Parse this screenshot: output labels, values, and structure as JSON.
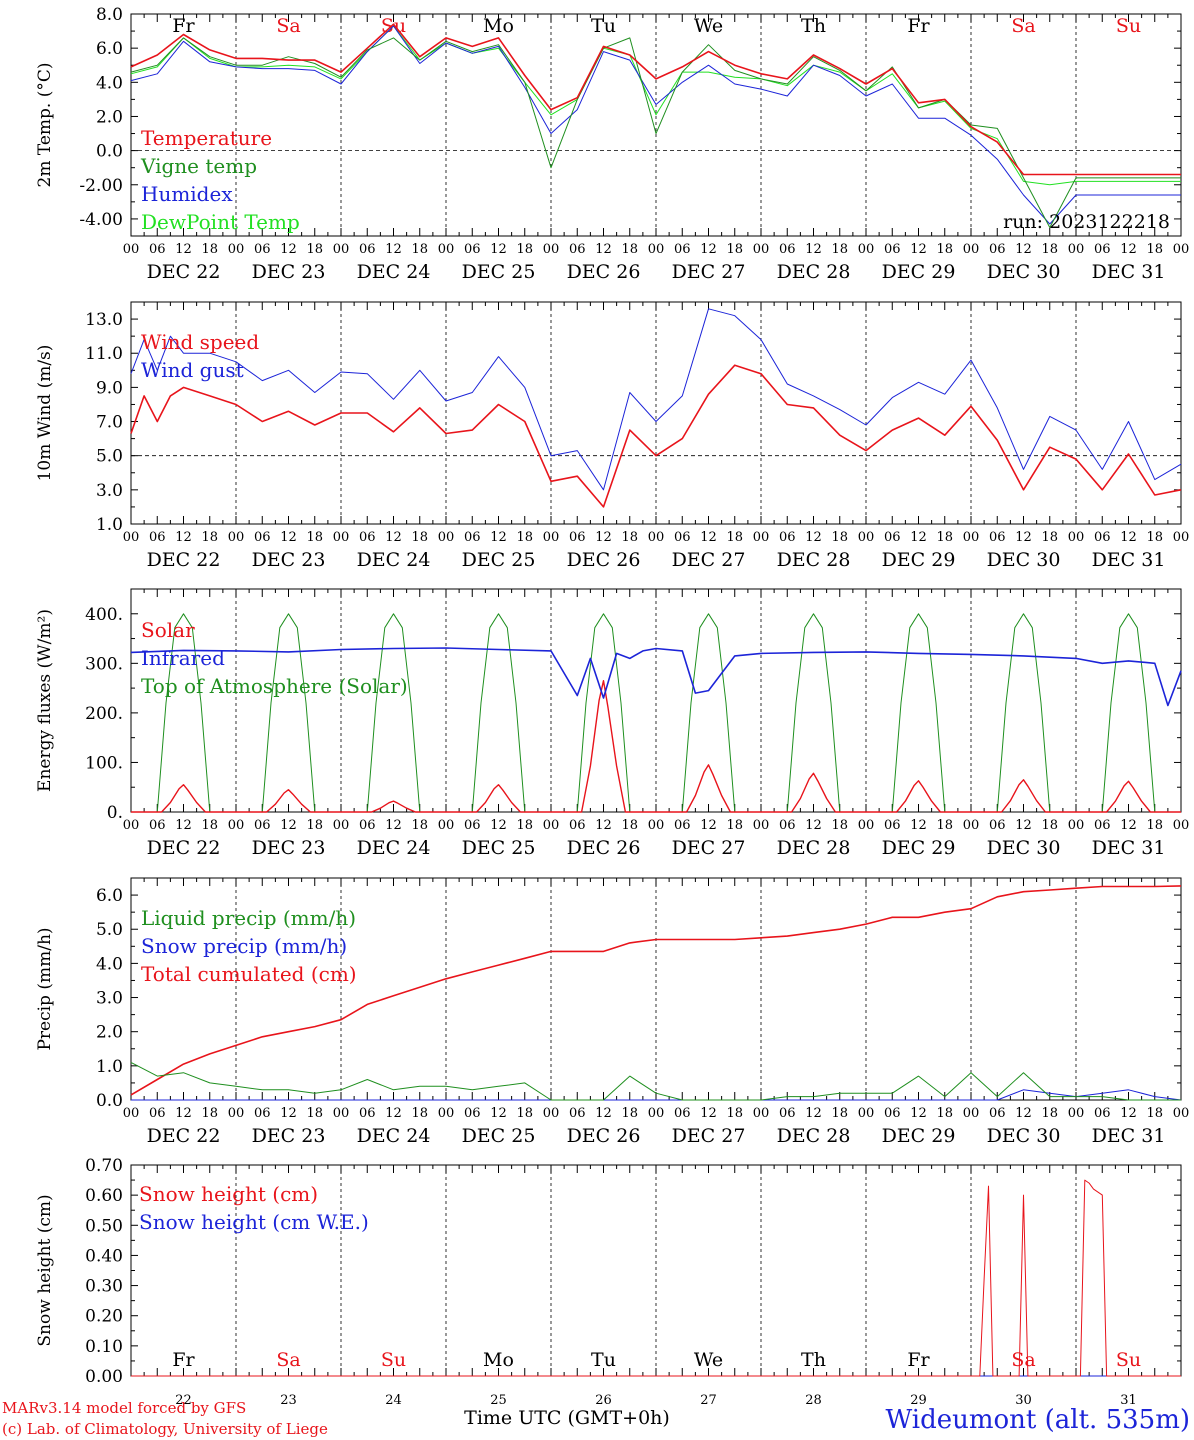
{
  "colors": {
    "red": "#e8141b",
    "green": "#1f8f1f",
    "blue": "#1c24d8",
    "lightgreen": "#22e022",
    "black": "#000000"
  },
  "time_axis": {
    "date_labels": [
      "DEC 22",
      "DEC 23",
      "DEC 24",
      "DEC 25",
      "DEC 26",
      "DEC 27",
      "DEC 28",
      "DEC 29",
      "DEC 30",
      "DEC 31"
    ],
    "hour_labels": [
      "00",
      "06",
      "12",
      "18"
    ],
    "day_names": [
      "Fr",
      "Sa",
      "Su",
      "Mo",
      "Tu",
      "We",
      "Th",
      "Fr",
      "Sa",
      "Su"
    ],
    "day_numbers": [
      "22",
      "23",
      "24",
      "25",
      "26",
      "27",
      "28",
      "29",
      "30",
      "31"
    ],
    "weekend_day_index": [
      1,
      2,
      8,
      9
    ],
    "xlabel": "Time UTC (GMT+0h)"
  },
  "footer": {
    "model_line": "MARv3.14 model forced by GFS",
    "credit_line": "(c) Lab. of Climatology, University of Liege",
    "station": "Wideumont (alt. 535m)"
  },
  "chart_data": [
    {
      "id": "temp",
      "type": "line",
      "ylabel": "2m Temp. (°C)",
      "ylim": [
        -5,
        8
      ],
      "yticks": [
        8.0,
        6.0,
        4.0,
        2.0,
        0.0,
        -2.0,
        -4.0
      ],
      "ref_line": 0,
      "show_day_names": true,
      "annotation": "run: 2023122218",
      "x": [
        0,
        6,
        12,
        18,
        24,
        30,
        36,
        42,
        48,
        54,
        60,
        66,
        72,
        78,
        84,
        90,
        96,
        102,
        108,
        114,
        120,
        126,
        132,
        138,
        144,
        150,
        156,
        162,
        168,
        174,
        180,
        186,
        192,
        198,
        204,
        210,
        216,
        222,
        228,
        234,
        240
      ],
      "series": [
        {
          "name": "Temperature",
          "color": "red",
          "values": [
            4.9,
            5.6,
            6.8,
            5.9,
            5.4,
            5.4,
            5.3,
            5.3,
            4.6,
            6.0,
            7.4,
            5.5,
            6.6,
            6.1,
            6.6,
            4.4,
            2.4,
            3.1,
            6.1,
            5.6,
            4.2,
            4.9,
            5.8,
            5.0,
            4.5,
            4.2,
            5.6,
            4.8,
            3.9,
            4.8,
            2.8,
            3.0,
            1.4,
            0.5,
            -1.4,
            -1.4,
            -1.4,
            -1.4,
            -1.4,
            -1.4,
            -1.4
          ]
        },
        {
          "name": "Vigne temp",
          "color": "green",
          "values": [
            4.6,
            5.0,
            6.6,
            5.5,
            5.0,
            5.0,
            5.5,
            5.1,
            4.3,
            5.9,
            6.6,
            5.3,
            6.4,
            5.8,
            6.2,
            4.0,
            -1.0,
            3.0,
            6.0,
            6.6,
            1.0,
            4.6,
            6.2,
            4.7,
            4.2,
            3.9,
            5.5,
            4.7,
            3.5,
            4.9,
            2.5,
            3.0,
            1.5,
            1.3,
            -1.6,
            -4.5,
            -1.6,
            -1.6,
            -1.6,
            -1.6,
            -1.6
          ]
        },
        {
          "name": "Humidex",
          "color": "blue",
          "values": [
            4.1,
            4.5,
            6.4,
            5.2,
            4.9,
            4.8,
            4.8,
            4.7,
            3.9,
            5.8,
            7.3,
            5.1,
            6.3,
            5.7,
            6.1,
            3.7,
            1.0,
            2.4,
            5.8,
            5.3,
            2.7,
            4.0,
            5.0,
            3.9,
            3.6,
            3.2,
            5.0,
            4.4,
            3.2,
            3.9,
            1.9,
            1.9,
            0.9,
            -0.5,
            -2.6,
            -4.3,
            -2.6,
            -2.6,
            -2.6,
            -2.6,
            -2.6
          ]
        },
        {
          "name": "DewPoint Temp",
          "color": "lightgreen",
          "values": [
            4.5,
            4.9,
            6.6,
            5.4,
            4.9,
            4.9,
            5.0,
            4.9,
            4.2,
            5.8,
            7.3,
            5.3,
            6.3,
            5.7,
            6.0,
            4.0,
            2.1,
            3.0,
            6.0,
            5.6,
            2.1,
            4.6,
            4.6,
            4.3,
            4.2,
            3.8,
            5.0,
            4.6,
            3.5,
            4.5,
            2.5,
            2.9,
            1.3,
            0.7,
            -1.8,
            -2.0,
            -1.8,
            -1.8,
            -1.8,
            -1.8,
            -1.8
          ]
        }
      ]
    },
    {
      "id": "wind",
      "type": "line",
      "ylabel": "10m Wind (m/s)",
      "ylim": [
        1,
        14
      ],
      "yticks": [
        13.0,
        11.0,
        9.0,
        7.0,
        5.0,
        3.0,
        1.0
      ],
      "ref_line": 5,
      "x": [
        0,
        3,
        6,
        9,
        12,
        18,
        24,
        30,
        36,
        42,
        48,
        54,
        60,
        66,
        72,
        78,
        84,
        90,
        96,
        102,
        108,
        114,
        120,
        126,
        132,
        138,
        144,
        150,
        156,
        162,
        168,
        174,
        180,
        186,
        192,
        198,
        204,
        210,
        216,
        222,
        228,
        234,
        240
      ],
      "series": [
        {
          "name": "Wind speed",
          "color": "red",
          "values": [
            6.3,
            8.5,
            7.0,
            8.5,
            9.0,
            8.5,
            8.0,
            7.0,
            7.6,
            6.8,
            7.5,
            7.5,
            6.4,
            7.8,
            6.3,
            6.5,
            8.0,
            7.0,
            3.5,
            3.8,
            2.0,
            6.5,
            5.0,
            6.0,
            8.6,
            10.3,
            9.8,
            8.0,
            7.8,
            6.2,
            5.3,
            6.5,
            7.2,
            6.2,
            7.9,
            5.9,
            3.0,
            5.5,
            4.8,
            3.0,
            5.1,
            2.7,
            3.0
          ]
        },
        {
          "name": "Wind gust",
          "color": "blue",
          "values": [
            9.8,
            11.8,
            10.0,
            12.0,
            11.0,
            11.0,
            10.5,
            9.4,
            10.0,
            8.7,
            9.9,
            9.8,
            8.3,
            10.0,
            8.2,
            8.7,
            10.8,
            9.0,
            5.0,
            5.3,
            3.0,
            8.7,
            7.0,
            8.5,
            13.6,
            13.2,
            11.8,
            9.2,
            8.5,
            7.7,
            6.8,
            8.4,
            9.3,
            8.6,
            10.6,
            7.8,
            4.2,
            7.3,
            6.5,
            4.2,
            7.0,
            3.6,
            4.5
          ]
        }
      ]
    },
    {
      "id": "energy",
      "type": "line",
      "ylabel": "Energy fluxes (W/m²)",
      "ylim": [
        0,
        450
      ],
      "yticks": [
        400,
        300,
        200,
        100,
        0
      ],
      "ytick_labels": [
        "400.",
        "300.",
        "200.",
        "100.",
        "0."
      ],
      "diurnal_peaks": [
        {
          "toa": 400,
          "solar": 55
        },
        {
          "toa": 400,
          "solar": 45
        },
        {
          "toa": 400,
          "solar": 22
        },
        {
          "toa": 400,
          "solar": 55
        },
        {
          "toa": 400,
          "solar": 265
        },
        {
          "toa": 400,
          "solar": 95
        },
        {
          "toa": 400,
          "solar": 78
        },
        {
          "toa": 400,
          "solar": 63
        },
        {
          "toa": 400,
          "solar": 65
        },
        {
          "toa": 400,
          "solar": 62
        }
      ],
      "infrared": {
        "x": [
          0,
          12,
          24,
          36,
          48,
          60,
          72,
          84,
          96,
          102,
          105,
          108,
          111,
          114,
          117,
          120,
          126,
          129,
          132,
          138,
          144,
          156,
          168,
          180,
          192,
          204,
          216,
          222,
          228,
          234,
          237,
          240
        ],
        "values": [
          322,
          326,
          325,
          323,
          328,
          330,
          331,
          328,
          325,
          235,
          310,
          230,
          320,
          310,
          325,
          330,
          325,
          240,
          245,
          315,
          320,
          322,
          323,
          320,
          318,
          315,
          310,
          300,
          305,
          300,
          215,
          285
        ]
      },
      "series": [
        {
          "name": "Solar",
          "color": "red"
        },
        {
          "name": "Infrared",
          "color": "blue"
        },
        {
          "name": "Top of Atmosphere (Solar)",
          "color": "green"
        }
      ]
    },
    {
      "id": "precip",
      "type": "line",
      "ylabel": "Precip (mm/h)",
      "ylim": [
        0,
        6.5
      ],
      "yticks": [
        6.0,
        5.0,
        4.0,
        3.0,
        2.0,
        1.0,
        0.0
      ],
      "x": [
        0,
        6,
        12,
        18,
        24,
        30,
        36,
        42,
        48,
        54,
        60,
        66,
        72,
        78,
        84,
        90,
        96,
        102,
        108,
        114,
        120,
        126,
        132,
        138,
        144,
        150,
        156,
        162,
        168,
        174,
        180,
        186,
        192,
        198,
        204,
        210,
        216,
        222,
        228,
        234,
        240
      ],
      "series": [
        {
          "name": "Liquid precip (mm/h)",
          "color": "green",
          "values": [
            1.1,
            0.7,
            0.8,
            0.5,
            0.4,
            0.3,
            0.3,
            0.2,
            0.3,
            0.6,
            0.3,
            0.4,
            0.4,
            0.3,
            0.4,
            0.5,
            0.0,
            0.0,
            0.0,
            0.7,
            0.2,
            0.0,
            0.0,
            0.0,
            0.0,
            0.1,
            0.1,
            0.2,
            0.2,
            0.2,
            0.7,
            0.1,
            0.8,
            0.1,
            0.8,
            0.1,
            0.1,
            0.1,
            0.0,
            0.0,
            0.0
          ]
        },
        {
          "name": "Snow precip (mm/h)",
          "color": "blue",
          "values": [
            0.0,
            0.0,
            0.0,
            0.0,
            0.0,
            0.0,
            0.0,
            0.0,
            0.0,
            0.0,
            0.0,
            0.0,
            0.0,
            0.0,
            0.0,
            0.0,
            0.0,
            0.0,
            0.0,
            0.0,
            0.0,
            0.0,
            0.0,
            0.0,
            0.0,
            0.0,
            0.0,
            0.0,
            0.0,
            0.0,
            0.0,
            0.0,
            0.0,
            0.0,
            0.3,
            0.2,
            0.1,
            0.2,
            0.3,
            0.1,
            0.0
          ]
        },
        {
          "name": "Total cumulated (cm)",
          "color": "red",
          "values": [
            0.15,
            0.6,
            1.05,
            1.35,
            1.6,
            1.85,
            2.0,
            2.15,
            2.35,
            2.8,
            3.05,
            3.3,
            3.55,
            3.75,
            3.95,
            4.15,
            4.35,
            4.35,
            4.35,
            4.6,
            4.7,
            4.7,
            4.7,
            4.7,
            4.75,
            4.8,
            4.9,
            5.0,
            5.15,
            5.35,
            5.35,
            5.5,
            5.6,
            5.95,
            6.1,
            6.15,
            6.2,
            6.25,
            6.25,
            6.25,
            6.27
          ]
        }
      ]
    },
    {
      "id": "snow",
      "type": "line",
      "ylabel": "Snow height (cm)",
      "ylim": [
        0,
        0.7
      ],
      "yticks": [
        0.7,
        0.6,
        0.5,
        0.4,
        0.3,
        0.2,
        0.1,
        0.0
      ],
      "show_day_names_bottom": true,
      "x": [
        0,
        194,
        195,
        196,
        197,
        203,
        204,
        205,
        206,
        217,
        218,
        219,
        220,
        222,
        223,
        240
      ],
      "series": [
        {
          "name": "Snow height (cm)",
          "color": "red",
          "values": [
            0,
            0,
            0.32,
            0.63,
            0,
            0,
            0.6,
            0,
            0,
            0,
            0.65,
            0.64,
            0.62,
            0.6,
            0,
            0
          ]
        },
        {
          "name": "Snow height (cm W.E.)",
          "color": "blue",
          "values": [
            0,
            0,
            0,
            0,
            0,
            0,
            0,
            0,
            0,
            0,
            0,
            0,
            0,
            0,
            0,
            0
          ]
        }
      ]
    }
  ]
}
